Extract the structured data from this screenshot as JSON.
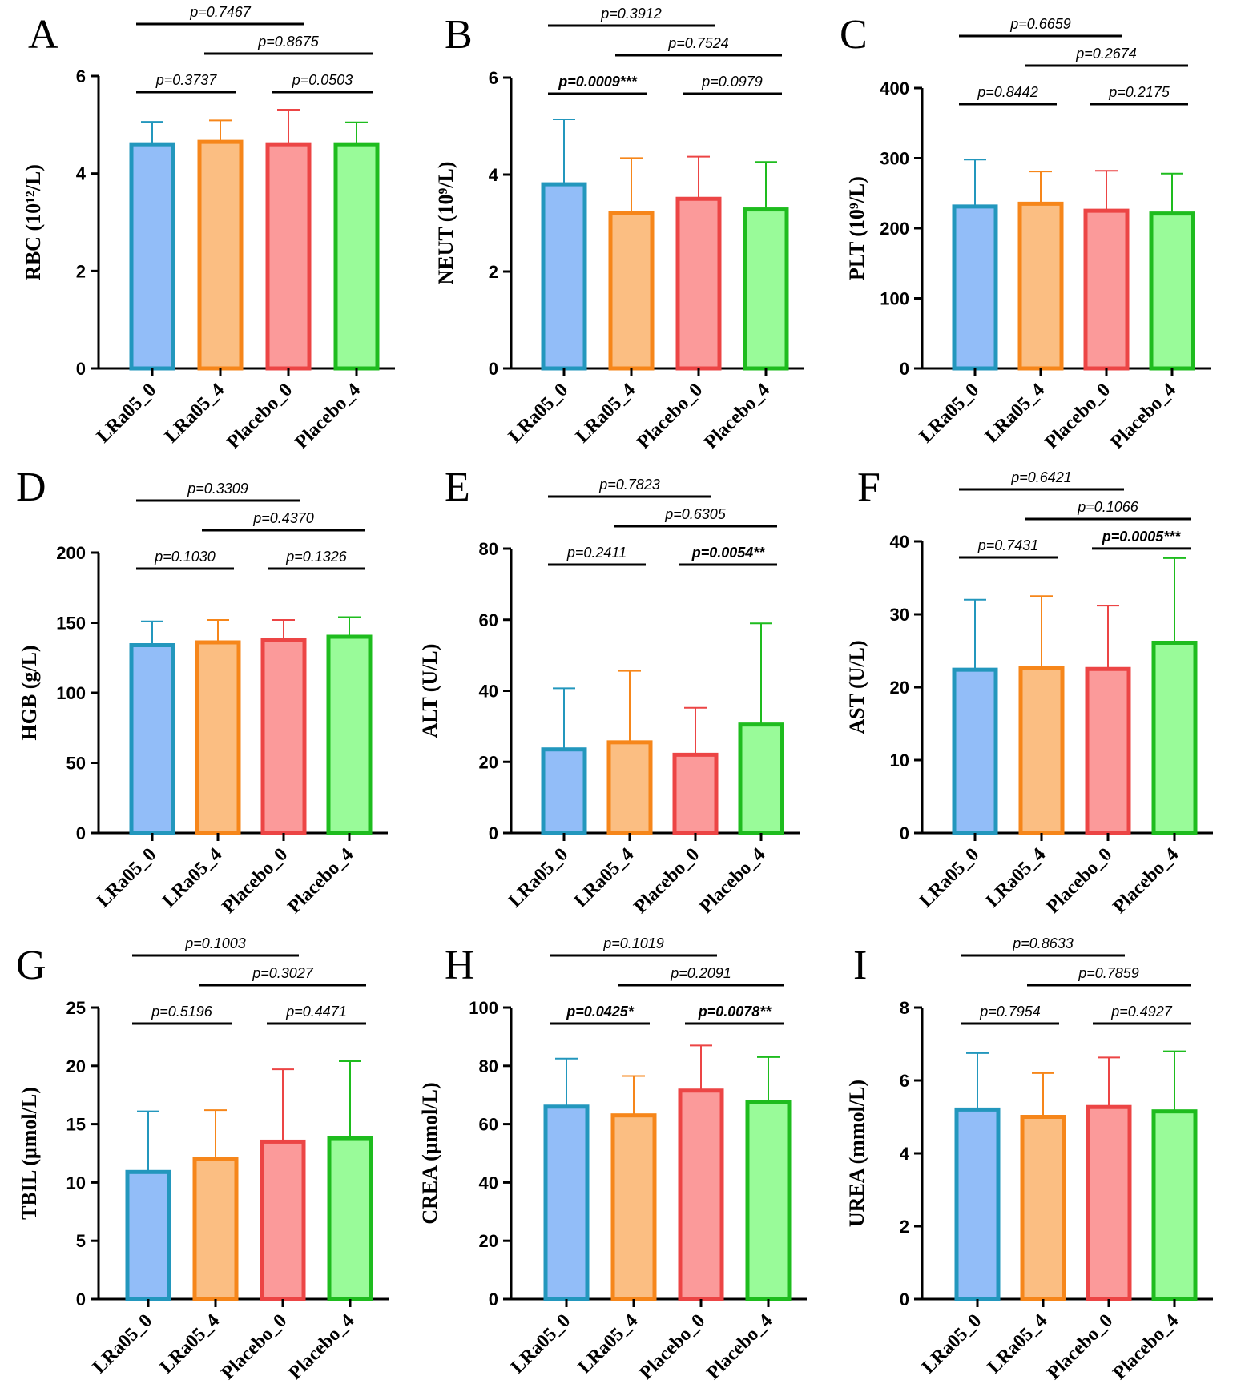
{
  "colors": {
    "LRa05_0": {
      "fill": "#92bdf8",
      "stroke": "#2397bd"
    },
    "LRa05_4": {
      "fill": "#fbbe82",
      "stroke": "#f6861a"
    },
    "Placebo_0": {
      "fill": "#fb9a9a",
      "stroke": "#ec4545"
    },
    "Placebo_4": {
      "fill": "#99fb99",
      "stroke": "#1ebc1e"
    }
  },
  "chart_data": [
    {
      "type": "bar",
      "panel": "A",
      "ylabel": "RBC (10¹²/L)",
      "categories": [
        "LRa05_0",
        "LRa05_4",
        "Placebo_0",
        "Placebo_4"
      ],
      "values": [
        4.6,
        4.65,
        4.6,
        4.6
      ],
      "errors": [
        0.46,
        0.44,
        0.71,
        0.45
      ],
      "ylim": [
        0,
        6
      ],
      "yticks": [
        "0",
        "2",
        "4",
        "6"
      ],
      "comparisons": [
        {
          "pair": [
            0,
            2
          ],
          "label": "p=0.7467",
          "sig": false
        },
        {
          "pair": [
            1,
            3
          ],
          "label": "p=0.8675",
          "sig": false
        },
        {
          "pair": [
            0,
            1
          ],
          "label": "p=0.3737",
          "sig": false
        },
        {
          "pair": [
            2,
            3
          ],
          "label": "p=0.0503",
          "sig": false
        }
      ]
    },
    {
      "type": "bar",
      "panel": "B",
      "ylabel": "NEUT (10⁹/L)",
      "categories": [
        "LRa05_0",
        "LRa05_4",
        "Placebo_0",
        "Placebo_4"
      ],
      "values": [
        3.8,
        3.2,
        3.5,
        3.28
      ],
      "errors": [
        1.34,
        1.14,
        0.87,
        0.98
      ],
      "ylim": [
        0,
        6
      ],
      "yticks": [
        "0",
        "2",
        "4",
        "6"
      ],
      "comparisons": [
        {
          "pair": [
            0,
            2
          ],
          "label": "p=0.3912",
          "sig": false
        },
        {
          "pair": [
            1,
            3
          ],
          "label": "p=0.7524",
          "sig": false
        },
        {
          "pair": [
            0,
            1
          ],
          "label": "p=0.0009***",
          "sig": true
        },
        {
          "pair": [
            2,
            3
          ],
          "label": "p=0.0979",
          "sig": false
        }
      ]
    },
    {
      "type": "bar",
      "panel": "C",
      "ylabel": "PLT (10⁹/L)",
      "categories": [
        "LRa05_0",
        "LRa05_4",
        "Placebo_0",
        "Placebo_4"
      ],
      "values": [
        231,
        235,
        225,
        221
      ],
      "errors": [
        67,
        46,
        57,
        57
      ],
      "ylim": [
        0,
        400
      ],
      "yticks": [
        "0",
        "100",
        "200",
        "300",
        "400"
      ],
      "comparisons": [
        {
          "pair": [
            0,
            2
          ],
          "label": "p=0.6659",
          "sig": false
        },
        {
          "pair": [
            1,
            3
          ],
          "label": "p=0.2674",
          "sig": false
        },
        {
          "pair": [
            0,
            1
          ],
          "label": "p=0.8442",
          "sig": false
        },
        {
          "pair": [
            2,
            3
          ],
          "label": "p=0.2175",
          "sig": false
        }
      ]
    },
    {
      "type": "bar",
      "panel": "D",
      "ylabel": "HGB (g/L)",
      "categories": [
        "LRa05_0",
        "LRa05_4",
        "Placebo_0",
        "Placebo_4"
      ],
      "values": [
        134,
        136,
        138,
        140
      ],
      "errors": [
        17,
        16,
        14,
        14
      ],
      "ylim": [
        0,
        200
      ],
      "yticks": [
        "0",
        "50",
        "100",
        "150",
        "200"
      ],
      "comparisons": [
        {
          "pair": [
            0,
            2
          ],
          "label": "p=0.3309",
          "sig": false
        },
        {
          "pair": [
            1,
            3
          ],
          "label": "p=0.4370",
          "sig": false
        },
        {
          "pair": [
            0,
            1
          ],
          "label": "p=0.1030",
          "sig": false
        },
        {
          "pair": [
            2,
            3
          ],
          "label": "p=0.1326",
          "sig": false
        }
      ]
    },
    {
      "type": "bar",
      "panel": "E",
      "ylabel": "ALT (U/L)",
      "categories": [
        "LRa05_0",
        "LRa05_4",
        "Placebo_0",
        "Placebo_4"
      ],
      "values": [
        23.5,
        25.5,
        22,
        30.5
      ],
      "errors": [
        17.2,
        20.1,
        13.2,
        28.5
      ],
      "ylim": [
        0,
        80
      ],
      "yticks": [
        "0",
        "20",
        "40",
        "60",
        "80"
      ],
      "comparisons": [
        {
          "pair": [
            0,
            2
          ],
          "label": "p=0.7823",
          "sig": false
        },
        {
          "pair": [
            1,
            3
          ],
          "label": "p=0.6305",
          "sig": false
        },
        {
          "pair": [
            0,
            1
          ],
          "label": "p=0.2411",
          "sig": false
        },
        {
          "pair": [
            2,
            3
          ],
          "label": "p=0.0054**",
          "sig": true
        }
      ]
    },
    {
      "type": "bar",
      "panel": "F",
      "ylabel": "AST (U/L)",
      "categories": [
        "LRa05_0",
        "LRa05_4",
        "Placebo_0",
        "Placebo_4"
      ],
      "values": [
        22.4,
        22.6,
        22.5,
        26.1
      ],
      "errors": [
        9.6,
        9.9,
        8.7,
        11.6
      ],
      "ylim": [
        0,
        40
      ],
      "yticks": [
        "0",
        "10",
        "20",
        "30",
        "40"
      ],
      "comparisons": [
        {
          "pair": [
            0,
            2
          ],
          "label": "p=0.6421",
          "sig": false
        },
        {
          "pair": [
            1,
            3
          ],
          "label": "p=0.1066",
          "sig": false
        },
        {
          "pair": [
            0,
            1
          ],
          "label": "p=0.7431",
          "sig": false
        },
        {
          "pair": [
            2,
            3
          ],
          "label": "p=0.0005***",
          "sig": true
        }
      ]
    },
    {
      "type": "bar",
      "panel": "G",
      "ylabel": "TBIL (μmol/L)",
      "categories": [
        "LRa05_0",
        "LRa05_4",
        "Placebo_0",
        "Placebo_4"
      ],
      "values": [
        10.9,
        12.0,
        13.5,
        13.8
      ],
      "errors": [
        5.2,
        4.2,
        6.2,
        6.6
      ],
      "ylim": [
        0,
        25
      ],
      "yticks": [
        "0",
        "5",
        "10",
        "15",
        "20",
        "25"
      ],
      "comparisons": [
        {
          "pair": [
            0,
            2
          ],
          "label": "p=0.1003",
          "sig": false
        },
        {
          "pair": [
            1,
            3
          ],
          "label": "p=0.3027",
          "sig": false
        },
        {
          "pair": [
            0,
            1
          ],
          "label": "p=0.5196",
          "sig": false
        },
        {
          "pair": [
            2,
            3
          ],
          "label": "p=0.4471",
          "sig": false
        }
      ]
    },
    {
      "type": "bar",
      "panel": "H",
      "ylabel": "CREA (μmol/L)",
      "categories": [
        "LRa05_0",
        "LRa05_4",
        "Placebo_0",
        "Placebo_4"
      ],
      "values": [
        66,
        63,
        71.5,
        67.5
      ],
      "errors": [
        16.5,
        13.5,
        15.5,
        15.5
      ],
      "ylim": [
        0,
        100
      ],
      "yticks": [
        "0",
        "20",
        "40",
        "60",
        "80",
        "100"
      ],
      "comparisons": [
        {
          "pair": [
            0,
            2
          ],
          "label": "p=0.1019",
          "sig": false
        },
        {
          "pair": [
            1,
            3
          ],
          "label": "p=0.2091",
          "sig": false
        },
        {
          "pair": [
            0,
            1
          ],
          "label": "p=0.0425*",
          "sig": true
        },
        {
          "pair": [
            2,
            3
          ],
          "label": "p=0.0078**",
          "sig": true
        }
      ]
    },
    {
      "type": "bar",
      "panel": "I",
      "ylabel": "UREA (mmol/L)",
      "categories": [
        "LRa05_0",
        "LRa05_4",
        "Placebo_0",
        "Placebo_4"
      ],
      "values": [
        5.2,
        5.0,
        5.27,
        5.15
      ],
      "errors": [
        1.55,
        1.2,
        1.36,
        1.65
      ],
      "ylim": [
        0,
        8
      ],
      "yticks": [
        "0",
        "2",
        "4",
        "6",
        "8"
      ],
      "comparisons": [
        {
          "pair": [
            0,
            2
          ],
          "label": "p=0.8633",
          "sig": false
        },
        {
          "pair": [
            1,
            3
          ],
          "label": "p=0.7859",
          "sig": false
        },
        {
          "pair": [
            0,
            1
          ],
          "label": "p=0.7954",
          "sig": false
        },
        {
          "pair": [
            2,
            3
          ],
          "label": "p=0.4927",
          "sig": false
        }
      ]
    }
  ]
}
